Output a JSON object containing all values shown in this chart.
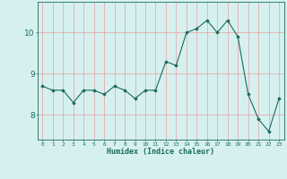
{
  "xlabel": "Humidex (Indice chaleur)",
  "ylabel": "",
  "x": [
    0,
    1,
    2,
    3,
    4,
    5,
    6,
    7,
    8,
    9,
    10,
    11,
    12,
    13,
    14,
    15,
    16,
    17,
    18,
    19,
    20,
    21,
    22,
    23
  ],
  "y": [
    8.7,
    8.6,
    8.6,
    8.3,
    8.6,
    8.6,
    8.5,
    8.7,
    8.6,
    8.4,
    8.6,
    8.6,
    9.3,
    9.2,
    10.0,
    10.1,
    10.3,
    10.0,
    10.3,
    9.9,
    8.5,
    7.9,
    7.6,
    8.4
  ],
  "line_color": "#1a6b5a",
  "marker": "D",
  "marker_size": 1.8,
  "bg_color": "#d6f0f0",
  "grid_color": "#e8a0a0",
  "tick_color": "#1a6b5a",
  "label_color": "#1a6b5a",
  "ylim": [
    7.4,
    10.75
  ],
  "yticks": [
    8,
    9,
    10
  ],
  "figsize": [
    3.2,
    2.0
  ],
  "dpi": 100
}
